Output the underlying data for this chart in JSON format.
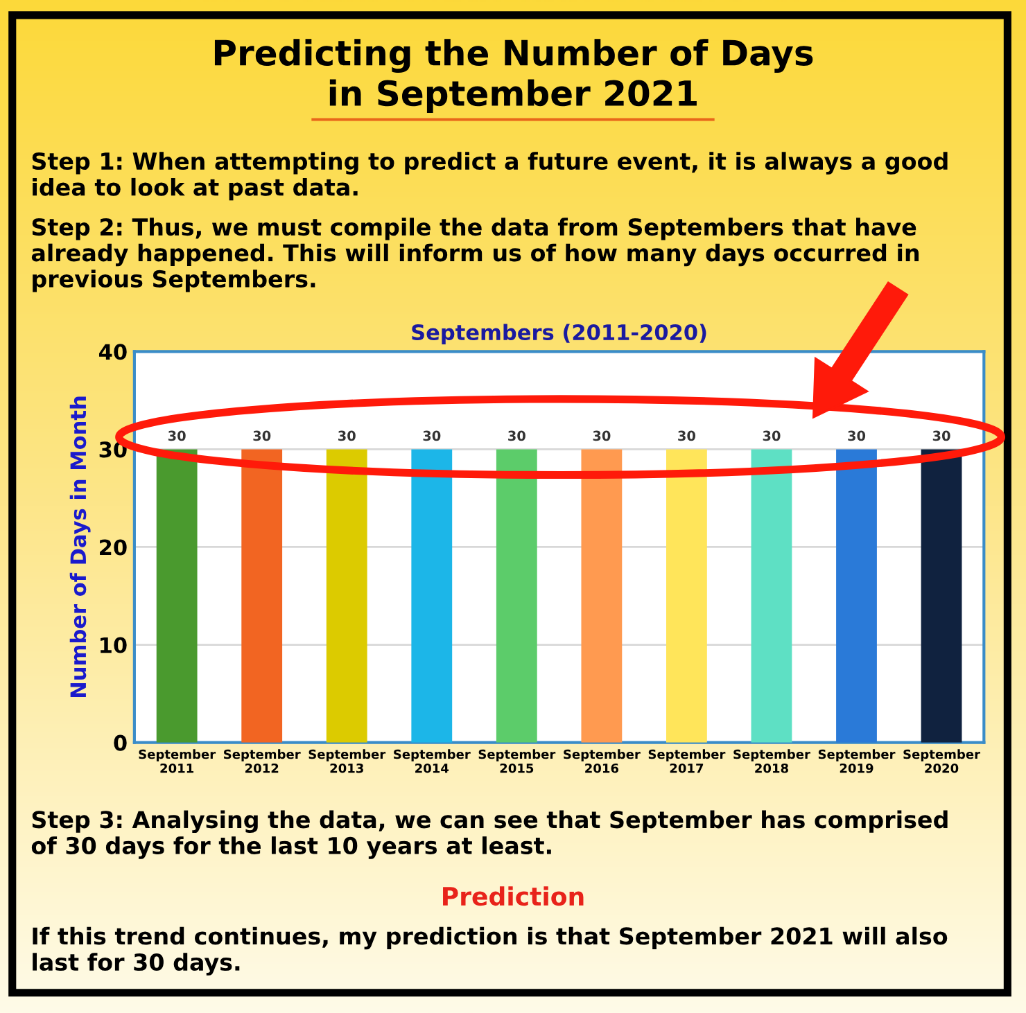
{
  "chart_data": {
    "type": "bar",
    "title": "Predicting the Number of Days\nin September 2021",
    "subtitle": "Septembers (2011-2020)",
    "ylabel": "Number of Days in Month",
    "categories": [
      "September\n2011",
      "September\n2012",
      "September\n2013",
      "September\n2014",
      "September\n2015",
      "September\n2016",
      "September\n2017",
      "September\n2018",
      "September\n2019",
      "September\n2020"
    ],
    "values": [
      30,
      30,
      30,
      30,
      30,
      30,
      30,
      30,
      30,
      30
    ],
    "colors": [
      "#4a9a2e",
      "#f26522",
      "#dccb00",
      "#1cb6e8",
      "#5ccc6a",
      "#ff9a50",
      "#ffe55a",
      "#5ee0c4",
      "#2a7ad8",
      "#10223f"
    ],
    "ylim": [
      0,
      40
    ],
    "yticks": [
      0,
      10,
      20,
      30,
      40
    ],
    "grid": "y",
    "data_labels": true,
    "annotations": [
      "Step 1: When attempting to predict a future event, it is always a good\nidea to look at past data.",
      "Step 2: Thus, we must compile the data from Septembers that have\nalready happened. This will inform us of how many days occurred in\nprevious Septembers.",
      "Step 3: Analysing the data, we can see that September has comprised\nof 30 days for the last 10 years at least.",
      "Prediction",
      "If this trend continues, my prediction is that September 2021 will also\nlast for 30 days."
    ]
  }
}
